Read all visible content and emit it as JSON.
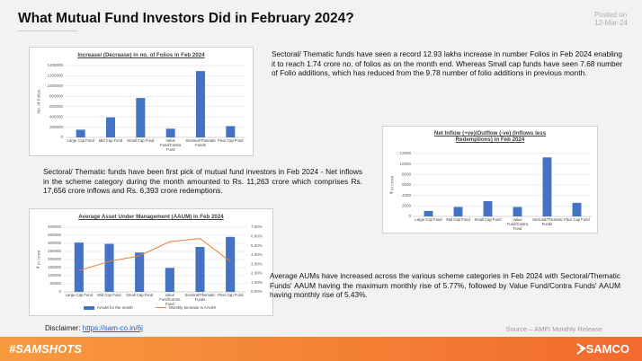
{
  "header": {
    "title": "What Mutual Fund Investors Did in February 2024?",
    "posted_label": "Posted on",
    "posted_date": "12-Mar-24"
  },
  "paragraphs": [
    "Sectoral/ Thematic funds have seen a record 12.93 lakhs increase in number Folios in Feb 2024 enabling it to reach 1.74 crore no. of folios as on the month end. Whereas Small cap funds have seen 7.68 number of Folio additions, which has reduced from the 9.78 number of folio additions in previous month.",
    "Sectoral/ Thematic funds have been first pick of mutual fund investors in Feb 2024 - Net inflows in the scheme category during the month amounted to Rs. 11,263 crore which comprises Rs. 17,656 crore inflows and Rs. 6,393 crore redemptions.",
    "Average AUMs have increased across the various scheme categories in Feb 2024 with Sectoral/Thematic Funds' AAUM having the maximum monthly rise of 5.77%, followed by Value Fund/Contra Funds' AAUM having monthly rise of 5.43%."
  ],
  "chart_data": [
    {
      "type": "bar",
      "title": "Increase/ (Decrease) in no. of Folios in Feb 2024",
      "y_label": "No. of Folios",
      "categories": [
        "Large Cap Fund",
        "Mid Cap Fund",
        "Small Cap Fund",
        "Value Fund/Contra Fund",
        "Sectoral/Thematic Funds",
        "Flexi Cap Fund"
      ],
      "values": [
        150000,
        390000,
        768000,
        170000,
        1293000,
        220000
      ],
      "color": "#4472c4",
      "ylim": [
        0,
        1400000
      ],
      "yticks": [
        0,
        200000,
        400000,
        600000,
        800000,
        1000000,
        1200000,
        1400000
      ],
      "grid": true
    },
    {
      "type": "bar",
      "title": "Net Inflow (+ve)/Outflow (-ve) (Inflows less Redemptions) in Feb 2024",
      "y_label": "₹ in crore",
      "categories": [
        "Large Cap Fund",
        "Mid Cap Fund",
        "Small Cap Fund",
        "Value Fund/Contra Fund",
        "Sectoral/Thematic Funds",
        "Flexi Cap Fund"
      ],
      "values": [
        1047,
        1808,
        2922,
        1800,
        11263,
        2600
      ],
      "color": "#4472c4",
      "ylim": [
        0,
        12000
      ],
      "yticks": [
        0,
        2000,
        4000,
        6000,
        8000,
        10000,
        12000
      ],
      "grid": true
    },
    {
      "type": "bar",
      "title": "Average Asset Under Management (AAUM) in Feb 2024",
      "y_label": "₹ in crore",
      "categories": [
        "Large Cap Fund",
        "Mid Cap Fund",
        "Small Cap Fund",
        "Value Fund/Contra Fund",
        "Sectoral/Thematic Funds",
        "Flexi Cap Fund"
      ],
      "series": [
        {
          "name": "AAUM for the month",
          "color": "#4472c4",
          "values": [
            305000,
            297000,
            243000,
            148000,
            278000,
            340000
          ]
        },
        {
          "name": "Monthly Increase in AAUM",
          "color": "#ed7d31",
          "type": "line",
          "axis": "y2",
          "values": [
            2.3,
            3.3,
            3.9,
            5.43,
            5.77,
            3.3
          ]
        }
      ],
      "ylim": [
        0,
        400000
      ],
      "yticks": [
        0,
        50000,
        100000,
        150000,
        200000,
        250000,
        300000,
        350000,
        400000
      ],
      "y2lim": [
        0,
        7
      ],
      "y2ticks": [
        {
          "value": 0,
          "label": "0.00%"
        },
        {
          "value": 1,
          "label": "1.00%"
        },
        {
          "value": 2,
          "label": "2.00%"
        },
        {
          "value": 3,
          "label": "3.00%"
        },
        {
          "value": 4,
          "label": "4.00%"
        },
        {
          "value": 5,
          "label": "5.00%"
        },
        {
          "value": 6,
          "label": "6.00%"
        },
        {
          "value": 7,
          "label": "7.00%"
        }
      ],
      "grid": true,
      "legend": "bottom"
    }
  ],
  "disclaimer": {
    "label": "Disclaimer:",
    "link": "https://sam-co.in/6j"
  },
  "source": "Source – AMFI Monthly Release",
  "footer": {
    "hashtag": "#SAMSHOTS",
    "brand": "SAMCO"
  }
}
